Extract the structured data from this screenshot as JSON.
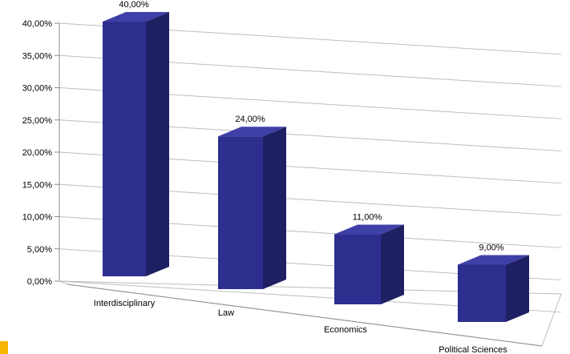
{
  "chart_data": {
    "type": "bar",
    "style": "3d-perspective",
    "categories": [
      "Interdisciplinary",
      "Law",
      "Economics",
      "Political Sciences"
    ],
    "values": [
      40,
      24,
      11,
      9
    ],
    "data_labels": [
      "40,00%",
      "24,00%",
      "11,00%",
      "9,00%"
    ],
    "y_ticks": [
      "0,00%",
      "5,00%",
      "10,00%",
      "15,00%",
      "20,00%",
      "25,00%",
      "30,00%",
      "35,00%",
      "40,00%"
    ],
    "ylim": [
      0,
      40
    ],
    "y_unit": "%",
    "title": "",
    "xlabel": "",
    "ylabel": "",
    "grid": true,
    "legend": "none",
    "colors": {
      "bar_front": "#2e2e8e",
      "bar_top": "#3f3fa8",
      "bar_side": "#1f1f63",
      "gridline": "#bdbdbd",
      "axis": "#8c8c8c",
      "marker": "#f7b500"
    }
  }
}
